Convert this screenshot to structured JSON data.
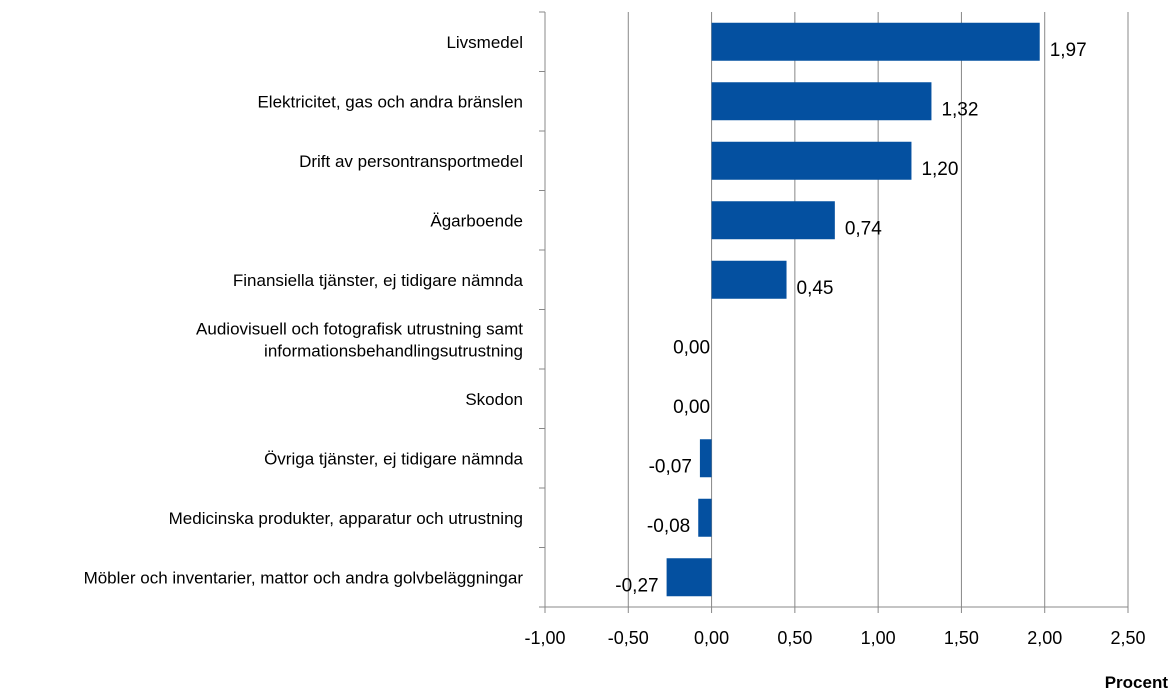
{
  "chart_data": {
    "type": "bar",
    "orientation": "horizontal",
    "categories": [
      "Livsmedel",
      "Elektricitet, gas och andra bränslen",
      "Drift av persontransportmedel",
      "Ägarboende",
      "Finansiella tjänster, ej tidigare nämnda",
      "Audiovisuell och fotografisk utrustning samt informationsbehandlingsutrustning",
      "Skodon",
      "Övriga tjänster, ej tidigare nämnda",
      "Medicinska produkter, apparatur och utrustning",
      "Möbler och inventarier, mattor och andra golvbeläggningar"
    ],
    "category_lines": [
      [
        "Livsmedel"
      ],
      [
        "Elektricitet, gas och andra bränslen"
      ],
      [
        "Drift av persontransportmedel"
      ],
      [
        "Ägarboende"
      ],
      [
        "Finansiella tjänster, ej tidigare nämnda"
      ],
      [
        "Audiovisuell och fotografisk utrustning samt",
        "informationsbehandlingsutrustning"
      ],
      [
        "Skodon"
      ],
      [
        "Övriga tjänster, ej tidigare nämnda"
      ],
      [
        "Medicinska produkter, apparatur och utrustning"
      ],
      [
        "Möbler och inventarier, mattor och andra golvbeläggningar"
      ]
    ],
    "values": [
      1.97,
      1.32,
      1.2,
      0.74,
      0.45,
      0.0,
      0.0,
      -0.07,
      -0.08,
      -0.27
    ],
    "data_labels": [
      "1,97",
      "1,32",
      "1,20",
      "0,74",
      "0,45",
      "0,00",
      "0,00",
      "-0,07",
      "-0,08",
      "-0,27"
    ],
    "xlim": [
      -1.0,
      2.5
    ],
    "xticks": [
      -1.0,
      -0.5,
      0.0,
      0.5,
      1.0,
      1.5,
      2.0,
      2.5
    ],
    "xtick_labels": [
      "-1,00",
      "-0,50",
      "0,00",
      "0,50",
      "1,00",
      "1,50",
      "2,00",
      "2,50"
    ],
    "xlabel": "Procent",
    "ylabel": "",
    "title": "",
    "grid": true,
    "legend": false,
    "bar_color": "#0450A0",
    "grid_color": "#888888"
  }
}
